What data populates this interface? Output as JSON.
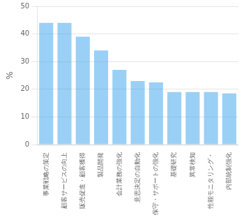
{
  "chart_data": {
    "type": "bar",
    "categories": [
      "事業戦略の策定",
      "顧客サービスの向上",
      "販売促進・顧客獲得",
      "製品開発",
      "会計業務の強化",
      "意思決定の自動化",
      "保守・サポートの強化",
      "基礎研究",
      "異常検知",
      "性能モニタリング・",
      "内部統制強化"
    ],
    "values": [
      44,
      44,
      39,
      34,
      27,
      23,
      22.5,
      19,
      19,
      19,
      18.5
    ],
    "ylabel": "%",
    "ylim": [
      0,
      50
    ],
    "yticks": [
      0,
      10,
      20,
      30,
      40,
      50
    ],
    "grid": true
  }
}
